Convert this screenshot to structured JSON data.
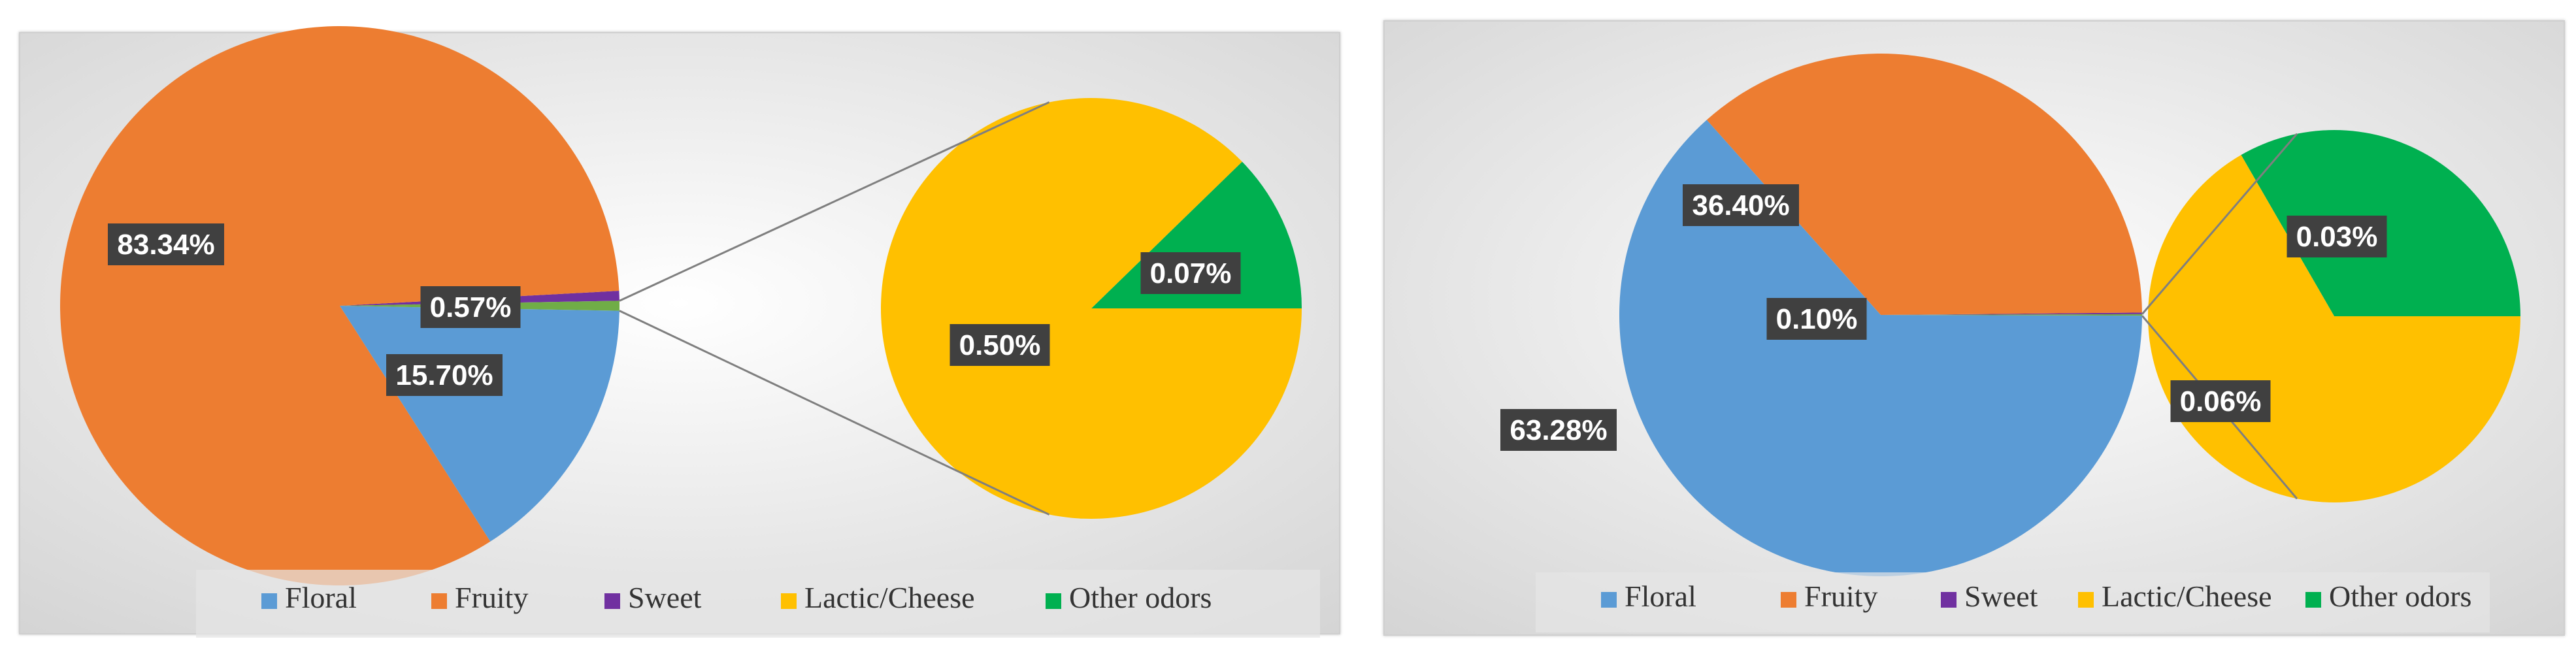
{
  "chart_data": [
    {
      "type": "pie",
      "subtype": "pie-of-pie",
      "categories": [
        "Floral",
        "Fruity",
        "Sweet",
        "Lactic/Cheese",
        "Other odors"
      ],
      "values": [
        15.7,
        83.34,
        0.57,
        0.5,
        0.07
      ],
      "labels": [
        "15.70%",
        "83.34%",
        "0.57%",
        "0.50%",
        "0.07%"
      ],
      "secondary_categories": [
        "Lactic/Cheese",
        "Other odors"
      ],
      "legend_position": "bottom",
      "colors": [
        "#5b9bd5",
        "#ed7d31",
        "#7030a0",
        "#ffc000",
        "#00b050"
      ]
    },
    {
      "type": "pie",
      "subtype": "pie-of-pie",
      "categories": [
        "Floral",
        "Fruity",
        "Sweet",
        "Lactic/Cheese",
        "Other odors"
      ],
      "values": [
        63.28,
        36.4,
        0.1,
        0.06,
        0.03
      ],
      "labels": [
        "63.28%",
        "36.40%",
        "0.10%",
        "0.06%",
        "0.03%"
      ],
      "secondary_categories": [
        "Lactic/Cheese",
        "Other odors"
      ],
      "legend_position": "bottom",
      "colors": [
        "#5b9bd5",
        "#ed7d31",
        "#7030a0",
        "#ffc000",
        "#00b050"
      ]
    }
  ]
}
